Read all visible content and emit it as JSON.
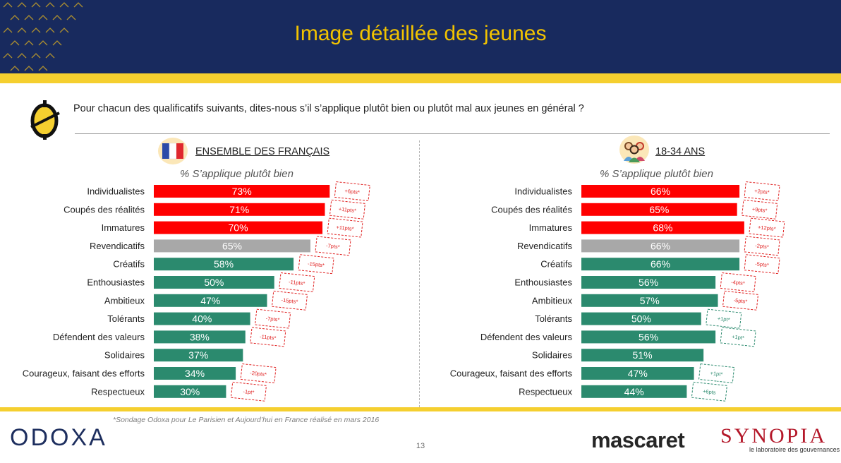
{
  "header": {
    "title": "Image détaillée des jeunes"
  },
  "question": "Pour chacun des qualificatifs suivants, dites-nous s’il s’applique plutôt bien ou plutôt mal aux jeunes en général ?",
  "colors": {
    "navy": "#182a5e",
    "yellow": "#f5cf2f",
    "title_yellow": "#f2c300",
    "red": "#ff0000",
    "green": "#2b8a6e",
    "grey": "#a8a8a8",
    "delta_red": "#e02020",
    "delta_green": "#2b8a6e"
  },
  "panels": [
    {
      "title": "ENSEMBLE DES FRANÇAIS",
      "subtitle": "% S’applique plutôt bien",
      "icon": "france-flag-icon"
    },
    {
      "title": "18-34 ANS",
      "subtitle": "% S’applique plutôt bien",
      "icon": "young-people-icon"
    }
  ],
  "chart_data": [
    {
      "type": "bar",
      "orientation": "horizontal",
      "title": "ENSEMBLE DES FRANÇAIS",
      "subtitle": "% S’applique plutôt bien",
      "categories": [
        "Individualistes",
        "Coupés des réalités",
        "Immatures",
        "Revendicatifs",
        "Créatifs",
        "Enthousiastes",
        "Ambitieux",
        "Tolérants",
        "Défendent des valeurs",
        "Solidaires",
        "Courageux, faisant des efforts",
        "Respectueux"
      ],
      "values": [
        73,
        71,
        70,
        65,
        58,
        50,
        47,
        40,
        38,
        37,
        34,
        30
      ],
      "labels": [
        "73%",
        "71%",
        "70%",
        "65%",
        "58%",
        "50%",
        "47%",
        "40%",
        "38%",
        "37%",
        "34%",
        "30%"
      ],
      "bar_colors": [
        "red",
        "red",
        "red",
        "grey",
        "green",
        "green",
        "green",
        "green",
        "green",
        "green",
        "green",
        "green"
      ],
      "deltas": [
        "+6pts*",
        "+11pts*",
        "+11pts*",
        "-7pts*",
        "-15pts*",
        "-11pts*",
        "-15pts*",
        "-7pts*",
        "-11pts*",
        "",
        "-20pts*",
        "-1pt*"
      ],
      "delta_colors": [
        "red",
        "red",
        "red",
        "red",
        "red",
        "red",
        "red",
        "red",
        "red",
        "",
        "red",
        "red"
      ]
    },
    {
      "type": "bar",
      "orientation": "horizontal",
      "title": "18-34 ANS",
      "subtitle": "% S’applique plutôt bien",
      "categories": [
        "Individualistes",
        "Coupés des réalités",
        "Immatures",
        "Revendicatifs",
        "Créatifs",
        "Enthousiastes",
        "Ambitieux",
        "Tolérants",
        "Défendent des valeurs",
        "Solidaires",
        "Courageux, faisant des efforts",
        "Respectueux"
      ],
      "values": [
        66,
        65,
        68,
        66,
        66,
        56,
        57,
        50,
        56,
        51,
        47,
        44
      ],
      "labels": [
        "66%",
        "65%",
        "68%",
        "66%",
        "66%",
        "56%",
        "57%",
        "50%",
        "56%",
        "51%",
        "47%",
        "44%"
      ],
      "bar_colors": [
        "red",
        "red",
        "red",
        "grey",
        "green",
        "green",
        "green",
        "green",
        "green",
        "green",
        "green",
        "green"
      ],
      "deltas": [
        "+2pts*",
        "+9pts*",
        "+12pts*",
        "-2pts*",
        "-5pts*",
        "-4pts*",
        "-5pts*",
        "+1pt*",
        "+1pt*",
        "",
        "+1pt*",
        "+6pts"
      ],
      "delta_colors": [
        "red",
        "red",
        "red",
        "red",
        "red",
        "red",
        "red",
        "green",
        "green",
        "",
        "green",
        "green"
      ]
    }
  ],
  "footnote": "*Sondage Odoxa pour Le Parisien et Aujourd’hui en France réalisé en mars 2016",
  "page_number": "13",
  "logos": {
    "odoxa": "ODOXA",
    "mascaret": "mascaret",
    "synopia": "SYNOPIA",
    "synopia_tagline": "le laboratoire des gouvernances"
  }
}
